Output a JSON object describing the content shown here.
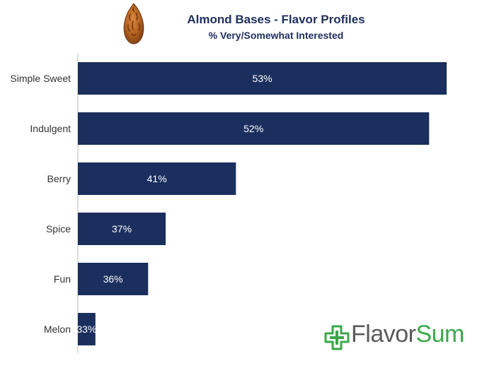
{
  "chart_data": {
    "type": "bar",
    "orientation": "horizontal",
    "title": "Almond Bases - Flavor Profiles",
    "subtitle": "% Very/Somewhat Interested",
    "categories": [
      "Simple Sweet",
      "Indulgent",
      "Berry",
      "Spice",
      "Fun",
      "Melon"
    ],
    "values": [
      53,
      52,
      41,
      37,
      36,
      33
    ],
    "value_labels": [
      "53%",
      "52%",
      "41%",
      "37%",
      "36%",
      "33%"
    ],
    "xlim": [
      32,
      53.6
    ],
    "grid": false,
    "legend": "none",
    "bar_color": "#1b2f5e",
    "label_color": "#ffffff"
  },
  "brand": {
    "name_part1": "Flavor",
    "name_part2": "Sum",
    "text_color": "#5a5a5a",
    "accent_color": "#3aa84a",
    "icon": "plus-cross-logo-icon"
  },
  "logo": {
    "icon": "almond-icon"
  }
}
